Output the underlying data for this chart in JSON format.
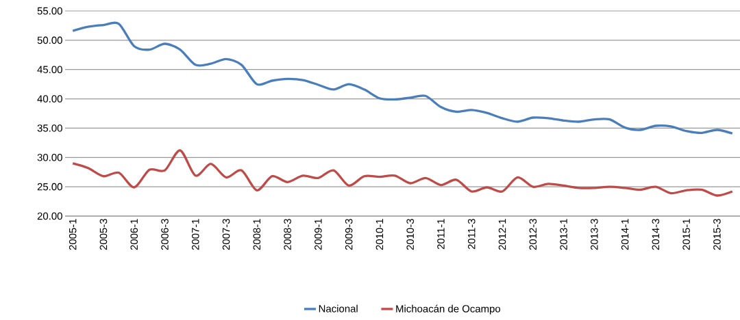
{
  "chart_data": {
    "type": "line",
    "categories": [
      "2005-1",
      null,
      "2005-3",
      null,
      "2006-1",
      null,
      "2006-3",
      null,
      "2007-1",
      null,
      "2007-3",
      null,
      "2008-1",
      null,
      "2008-3",
      null,
      "2009-1",
      null,
      "2009-3",
      null,
      "2010-1",
      null,
      "2010-3",
      null,
      "2011-1",
      null,
      "2011-3",
      null,
      "2012-1",
      null,
      "2012-3",
      null,
      "2013-1",
      null,
      "2013-3",
      null,
      "2014-1",
      null,
      "2014-3",
      null,
      "2015-1",
      null,
      "2015-3",
      null
    ],
    "series": [
      {
        "name": "Nacional",
        "color": "#4a7ebb",
        "values": [
          51.6,
          52.3,
          52.6,
          52.8,
          49.0,
          48.4,
          49.4,
          48.4,
          45.8,
          46.0,
          46.8,
          45.8,
          42.5,
          43.1,
          43.4,
          43.2,
          42.4,
          41.6,
          42.5,
          41.6,
          40.1,
          39.9,
          40.2,
          40.5,
          38.6,
          37.8,
          38.1,
          37.6,
          36.7,
          36.1,
          36.8,
          36.7,
          36.3,
          36.1,
          36.5,
          36.5,
          35.1,
          34.7,
          35.4,
          35.3,
          34.5,
          34.2,
          34.7,
          34.1
        ]
      },
      {
        "name": "Michoacán de Ocampo",
        "color": "#be4b48",
        "values": [
          29.0,
          28.2,
          26.8,
          27.4,
          24.9,
          27.9,
          27.8,
          31.2,
          26.9,
          28.9,
          26.6,
          27.8,
          24.4,
          26.8,
          25.8,
          26.9,
          26.5,
          27.8,
          25.2,
          26.8,
          26.7,
          26.9,
          25.6,
          26.5,
          25.3,
          26.2,
          24.2,
          24.9,
          24.2,
          26.6,
          25.0,
          25.5,
          25.2,
          24.8,
          24.8,
          25.0,
          24.8,
          24.5,
          25.0,
          23.9,
          24.4,
          24.5,
          23.5,
          24.2
        ]
      }
    ],
    "ylim": [
      20,
      55
    ],
    "yticks": [
      {
        "value": 20,
        "label": "20.00"
      },
      {
        "value": 25,
        "label": "25.00"
      },
      {
        "value": 30,
        "label": "30.00"
      },
      {
        "value": 35,
        "label": "35.00"
      },
      {
        "value": 40,
        "label": "40.00"
      },
      {
        "value": 45,
        "label": "45.00"
      },
      {
        "value": 50,
        "label": "50.00"
      },
      {
        "value": 55,
        "label": "55.00"
      }
    ],
    "grid": "y",
    "legend": "bottom",
    "line_style": "solid",
    "marker": "none"
  }
}
